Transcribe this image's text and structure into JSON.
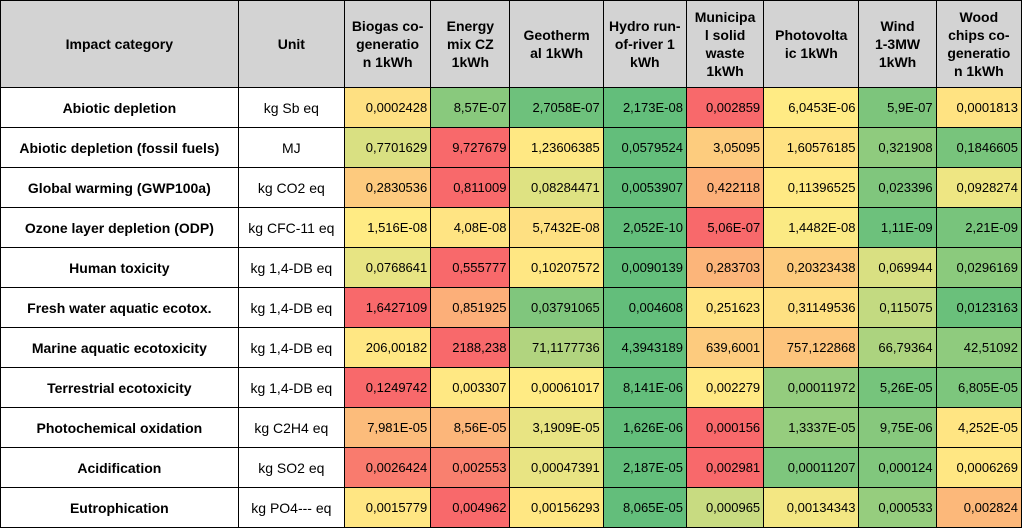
{
  "colors": {
    "green": "#63be7b",
    "yellow": "#ffeb84",
    "red": "#f8696b",
    "header_bg": "#d3d3d3"
  },
  "chart_data": {
    "type": "table",
    "columns": [
      "Impact category",
      "Unit",
      "Biogas co-generation 1kWh",
      "Energy mix CZ 1kWh",
      "Geothermal 1kWh",
      "Hydro run-of-river 1 kWh",
      "Municipal solid waste 1kWh",
      "Photovoltaic 1kWh",
      "Wind 1-3MW 1kWh",
      "Wood chips co-generation 1kWh"
    ],
    "header_lines": [
      [
        "Impact category"
      ],
      [
        "Unit"
      ],
      [
        "Biogas co-",
        "generatio",
        "n 1kWh"
      ],
      [
        "Energy",
        "mix CZ",
        "1kWh"
      ],
      [
        "Geotherm",
        "al 1kWh"
      ],
      [
        "Hydro run-",
        "of-river 1",
        "kWh"
      ],
      [
        "Municipa",
        "l solid",
        "waste",
        "1kWh"
      ],
      [
        "Photovolta",
        "ic 1kWh"
      ],
      [
        "Wind",
        "1-3MW",
        "1kWh"
      ],
      [
        "Wood",
        "chips co-",
        "generatio",
        "n 1kWh"
      ]
    ],
    "rows": [
      {
        "category": "Abiotic depletion",
        "unit": "kg Sb eq",
        "display": [
          "0,0002428",
          "8,57E-07",
          "2,7058E-07",
          "2,173E-08",
          "0,002859",
          "6,0453E-06",
          "5,9E-07",
          "0,0001813"
        ],
        "values": [
          0.0002428,
          8.57e-07,
          2.7058e-07,
          2.173e-08,
          0.002859,
          6.0453e-06,
          5.9e-07,
          0.0001813
        ]
      },
      {
        "category": "Abiotic depletion (fossil fuels)",
        "unit": "MJ",
        "display": [
          "0,7701629",
          "9,727679",
          "1,23606385",
          "0,0579524",
          "3,05095",
          "1,60576185",
          "0,321908",
          "0,1846605"
        ],
        "values": [
          0.7701629,
          9.727679,
          1.23606385,
          0.0579524,
          3.05095,
          1.60576185,
          0.321908,
          0.1846605
        ]
      },
      {
        "category": "Global warming (GWP100a)",
        "unit": "kg CO2 eq",
        "display": [
          "0,2830536",
          "0,811009",
          "0,08284471",
          "0,0053907",
          "0,422118",
          "0,11396525",
          "0,023396",
          "0,0928274"
        ],
        "values": [
          0.2830536,
          0.811009,
          0.08284471,
          0.0053907,
          0.422118,
          0.11396525,
          0.023396,
          0.0928274
        ]
      },
      {
        "category": "Ozone layer depletion (ODP)",
        "unit": "kg CFC-11 eq",
        "display": [
          "1,516E-08",
          "4,08E-08",
          "5,7432E-08",
          "2,052E-10",
          "5,06E-07",
          "1,4482E-08",
          "1,11E-09",
          "2,21E-09"
        ],
        "values": [
          1.516e-08,
          4.08e-08,
          5.7432e-08,
          2.052e-10,
          5.06e-07,
          1.4482e-08,
          1.11e-09,
          2.21e-09
        ]
      },
      {
        "category": "Human toxicity",
        "unit": "kg 1,4-DB eq",
        "display": [
          "0,0768641",
          "0,555777",
          "0,10207572",
          "0,0090139",
          "0,283703",
          "0,20323438",
          "0,069944",
          "0,0296169"
        ],
        "values": [
          0.0768641,
          0.555777,
          0.10207572,
          0.0090139,
          0.283703,
          0.20323438,
          0.069944,
          0.0296169
        ]
      },
      {
        "category": "Fresh water aquatic ecotox.",
        "unit": "kg 1,4-DB eq",
        "display": [
          "1,6427109",
          "0,851925",
          "0,03791065",
          "0,004608",
          "0,251623",
          "0,31149536",
          "0,115075",
          "0,0123163"
        ],
        "values": [
          1.6427109,
          0.851925,
          0.03791065,
          0.004608,
          0.251623,
          0.31149536,
          0.115075,
          0.0123163
        ]
      },
      {
        "category": "Marine aquatic ecotoxicity",
        "unit": "kg 1,4-DB eq",
        "display": [
          "206,00182",
          "2188,238",
          "71,1177736",
          "4,3943189",
          "639,6001",
          "757,122868",
          "66,79364",
          "42,51092"
        ],
        "values": [
          206.00182,
          2188.238,
          71.1177736,
          4.3943189,
          639.6001,
          757.122868,
          66.79364,
          42.51092
        ]
      },
      {
        "category": "Terrestrial ecotoxicity",
        "unit": "kg 1,4-DB eq",
        "display": [
          "0,1249742",
          "0,003307",
          "0,00061017",
          "8,141E-06",
          "0,002279",
          "0,00011972",
          "5,26E-05",
          "6,805E-05"
        ],
        "values": [
          0.1249742,
          0.003307,
          0.00061017,
          8.141e-06,
          0.002279,
          0.00011972,
          5.26e-05,
          6.805e-05
        ]
      },
      {
        "category": "Photochemical oxidation",
        "unit": "kg C2H4 eq",
        "display": [
          "7,981E-05",
          "8,56E-05",
          "3,1909E-05",
          "1,626E-06",
          "0,000156",
          "1,3337E-05",
          "9,75E-06",
          "4,252E-05"
        ],
        "values": [
          7.981e-05,
          8.56e-05,
          3.1909e-05,
          1.626e-06,
          0.000156,
          1.3337e-05,
          9.75e-06,
          4.252e-05
        ]
      },
      {
        "category": "Acidification",
        "unit": "kg SO2 eq",
        "display": [
          "0,0026424",
          "0,002553",
          "0,00047391",
          "2,187E-05",
          "0,002981",
          "0,00011207",
          "0,000124",
          "0,0006269"
        ],
        "values": [
          0.0026424,
          0.002553,
          0.00047391,
          2.187e-05,
          0.002981,
          0.00011207,
          0.000124,
          0.0006269
        ]
      },
      {
        "category": "Eutrophication",
        "unit": "kg PO4--- eq",
        "display": [
          "0,0015779",
          "0,004962",
          "0,00156293",
          "8,065E-05",
          "0,000965",
          "0,00134343",
          "0,000533",
          "0,002824"
        ],
        "values": [
          0.0015779,
          0.004962,
          0.00156293,
          8.065e-05,
          0.000965,
          0.00134343,
          0.000533,
          0.002824
        ]
      }
    ],
    "color_scale": "per-row 3-color scale: min green, mid yellow, max red",
    "legend": "none",
    "title": ""
  }
}
